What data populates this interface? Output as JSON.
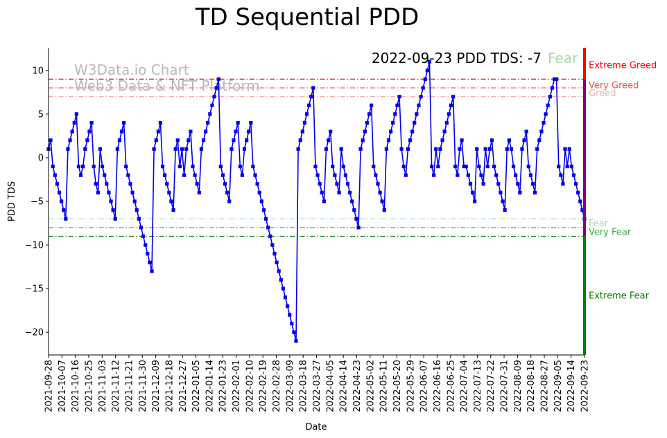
{
  "chart_data": {
    "type": "line",
    "title": "TD Sequential PDD",
    "xlabel": "Date",
    "ylabel": "PDD TDS",
    "ylim": [
      -22.6,
      12.6
    ],
    "yticks": [
      10,
      5,
      0,
      -5,
      -10,
      -15,
      -20
    ],
    "x_start": "2021-09-28",
    "x_end": "2022-09-23",
    "xtick_labels": [
      "2021-09-28",
      "2021-10-07",
      "2021-10-16",
      "2021-10-25",
      "2021-11-03",
      "2021-11-12",
      "2021-11-21",
      "2021-11-30",
      "2021-12-09",
      "2021-12-18",
      "2021-12-27",
      "2022-01-05",
      "2022-01-14",
      "2022-01-23",
      "2022-02-01",
      "2022-02-10",
      "2022-02-19",
      "2022-02-28",
      "2022-03-09",
      "2022-03-18",
      "2022-03-27",
      "2022-04-05",
      "2022-04-14",
      "2022-04-23",
      "2022-05-02",
      "2022-05-11",
      "2022-05-20",
      "2022-05-29",
      "2022-06-07",
      "2022-06-16",
      "2022-06-25",
      "2022-07-04",
      "2022-07-13",
      "2022-07-22",
      "2022-07-31",
      "2022-08-09",
      "2022-08-18",
      "2022-08-27",
      "2022-09-05",
      "2022-09-14",
      "2022-09-23"
    ],
    "series": [
      {
        "name": "PDD TDS",
        "color": "#0000ee",
        "values": [
          1,
          2,
          -1,
          -2,
          -3,
          -4,
          -5,
          -6,
          -7,
          1,
          2,
          3,
          4,
          5,
          -1,
          -2,
          -1,
          1,
          2,
          3,
          4,
          -1,
          -3,
          -4,
          1,
          -1,
          -2,
          -3,
          -4,
          -5,
          -6,
          -7,
          1,
          2,
          3,
          4,
          -1,
          -2,
          -3,
          -4,
          -5,
          -6,
          -7,
          -8,
          -9,
          -10,
          -11,
          -12,
          -13,
          1,
          2,
          3,
          4,
          -1,
          -2,
          -3,
          -4,
          -5,
          -6,
          1,
          2,
          -1,
          1,
          -2,
          1,
          2,
          3,
          -1,
          -2,
          -3,
          -4,
          1,
          2,
          3,
          4,
          5,
          6,
          7,
          8,
          9,
          -1,
          -2,
          -3,
          -4,
          -5,
          1,
          2,
          3,
          4,
          -1,
          -2,
          1,
          2,
          3,
          4,
          -1,
          -2,
          -3,
          -4,
          -5,
          -6,
          -7,
          -8,
          -9,
          -10,
          -11,
          -12,
          -13,
          -14,
          -15,
          -16,
          -17,
          -18,
          -19,
          -20,
          -21,
          1,
          2,
          3,
          4,
          5,
          6,
          7,
          8,
          -1,
          -2,
          -3,
          -4,
          -5,
          1,
          2,
          3,
          -1,
          -2,
          -3,
          -4,
          1,
          -1,
          -2,
          -3,
          -4,
          -5,
          -6,
          -7,
          -8,
          1,
          2,
          3,
          4,
          5,
          6,
          -1,
          -2,
          -3,
          -4,
          -5,
          -6,
          1,
          2,
          3,
          4,
          5,
          6,
          7,
          1,
          -1,
          -2,
          1,
          2,
          3,
          4,
          5,
          6,
          7,
          8,
          9,
          10,
          11,
          -1,
          -2,
          1,
          -1,
          1,
          2,
          3,
          4,
          5,
          6,
          7,
          -1,
          -2,
          1,
          2,
          -1,
          -1,
          -2,
          -3,
          -4,
          -5,
          1,
          -1,
          -2,
          -3,
          1,
          -1,
          1,
          2,
          -1,
          -2,
          -3,
          -4,
          -5,
          -6,
          1,
          2,
          1,
          -1,
          -2,
          -3,
          -4,
          1,
          2,
          3,
          -1,
          -2,
          -3,
          -4,
          1,
          2,
          3,
          4,
          5,
          6,
          7,
          8,
          9,
          9,
          -1,
          -2,
          -3,
          1,
          -1,
          1,
          -1,
          -2,
          -3,
          -4,
          -5,
          -6,
          -7
        ]
      }
    ],
    "thresholds": [
      {
        "value": 9,
        "color": "#ff0000"
      },
      {
        "value": 8,
        "color": "#f06060"
      },
      {
        "value": 7,
        "color": "#f6aaaa"
      },
      {
        "value": -7,
        "color": "#a8e0a8"
      },
      {
        "value": -8,
        "color": "#55b855"
      },
      {
        "value": -9,
        "color": "#007a00"
      }
    ],
    "zone_bar": [
      {
        "from": 9,
        "to": 12.6,
        "color": "#ff0000"
      },
      {
        "from": -9,
        "to": 9,
        "color": "#800080"
      },
      {
        "from": -22.6,
        "to": -9,
        "color": "#008000"
      }
    ],
    "zone_labels": [
      {
        "text": "Extreme Greed",
        "value": 10.6,
        "color": "#ff0000"
      },
      {
        "text": "Very Greed",
        "value": 8.3,
        "color": "#f05050"
      },
      {
        "text": "Greed",
        "value": 7.4,
        "color": "#f6aaaa"
      },
      {
        "text": "Fear",
        "value": -7.5,
        "color": "#a8d8a8"
      },
      {
        "text": "Very Fear",
        "value": -8.5,
        "color": "#44aa44"
      },
      {
        "text": "Extreme Fear",
        "value": -15.8,
        "color": "#008000"
      }
    ],
    "annotation": {
      "text": "2022-09-23 PDD TDS: -7",
      "status": "Fear",
      "status_color": "#a8d8a8"
    },
    "watermark": {
      "line1": "W3Data.io Chart",
      "line2": "Web3 Data & NFT Platform"
    }
  }
}
